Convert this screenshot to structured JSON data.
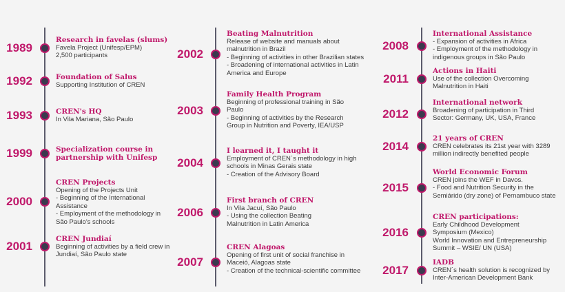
{
  "columns": [
    {
      "entries": [
        {
          "year": "1989",
          "title": [
            "Research in favelas (slums)"
          ],
          "lines": [
            "Favela Project (Unifesp/EPM)",
            "2,500 participants"
          ]
        },
        {
          "year": "1992",
          "title": [
            "Foundation of Salus"
          ],
          "lines": [
            "Supporting Institution of CREN"
          ]
        },
        {
          "year": "1993",
          "title": [
            "CREN's HQ"
          ],
          "lines": [
            "In Vila Mariana, São Paulo"
          ]
        },
        {
          "year": "1999",
          "title": [
            "Specialization course in",
            "partnership with Unifesp"
          ],
          "lines": []
        },
        {
          "year": "2000",
          "title": [
            "CREN Projects"
          ],
          "lines": [
            "Opening of the Projects Unit",
            "- Beginning of the International",
            "Assistance",
            "- Employment of the methodology in",
            "São Paulo's schools"
          ]
        },
        {
          "year": "2001",
          "title": [
            "CREN Jundiaí"
          ],
          "lines": [
            "Beginning of activities by a field crew in",
            "Jundiaí, São Paulo state"
          ]
        }
      ]
    },
    {
      "entries": [
        {
          "year": "2002",
          "title": [
            "Beating Malnutrition"
          ],
          "lines": [
            "Release of website and manuals about",
            "malnutrition in Brazil",
            "- Beginning of activities in other Brazilian states",
            "- Broadening of international activities in Latin",
            "America and Europe"
          ]
        },
        {
          "year": "2003",
          "title": [
            "Family Health Program"
          ],
          "lines": [
            "Beginning of professional training in São",
            "Paulo",
            "- Beginning of activities by the Research",
            "Group in Nutrition and Poverty, IEA/USP"
          ]
        },
        {
          "year": "2004",
          "title": [
            "I learned it, I taught it"
          ],
          "lines": [
            "Employment of CREN´s methodology in high",
            "schools in Minas Gerais state",
            "- Creation of the Advisory Board"
          ]
        },
        {
          "year": "2006",
          "title": [
            "First branch of CREN"
          ],
          "lines": [
            "In Vila Jacuí, São Paulo",
            "- Using the collection Beating",
            "Malnutrition in Latin America"
          ]
        },
        {
          "year": "2007",
          "title": [
            "CREN Alagoas"
          ],
          "lines": [
            "Opening of first unit of social franchise in",
            "Maceió, Alagoas state",
            "- Creation of the technical-scientific committee"
          ]
        }
      ]
    },
    {
      "entries": [
        {
          "year": "2008",
          "title": [
            "International Assistance"
          ],
          "lines": [
            "- Expansion of activities in Africa",
            "- Employment of the methodology in",
            "indigenous groups in São Paulo"
          ]
        },
        {
          "year": "2011",
          "title": [
            "Actions in Haiti"
          ],
          "lines": [
            "Use of the collection Overcoming",
            "Malnutrition in Haiti"
          ]
        },
        {
          "year": "2012",
          "title": [
            "International network"
          ],
          "lines": [
            "Broadening of participation in Third",
            "Sector: Germany, UK, USA, France"
          ]
        },
        {
          "year": "2014",
          "title": [
            "21 years of CREN"
          ],
          "lines": [
            "CREN celebrates its 21st year with 3289",
            "million indirectly benefited people"
          ]
        },
        {
          "year": "2015",
          "title": [
            "World Economic Forum"
          ],
          "lines": [
            "CREN joins the WEF in Davos.",
            "- Food and Nutrition Security in the",
            "Semiárido (dry zone) of Pernambuco state"
          ]
        },
        {
          "year": "2016",
          "title": [
            "CREN participations:"
          ],
          "lines": [
            "Early Childhood Development",
            "Symposium (Mexico)",
            "World Innovation and Entrepreneurship",
            "Summit – WSIE/ UN (USA)"
          ]
        },
        {
          "year": "2017",
          "title": [
            "IADB"
          ],
          "lines": [
            "CREN´s health solution is recognized by",
            "Inter-American Development Bank"
          ]
        }
      ]
    }
  ],
  "colors": {
    "accent": "#c0196b",
    "line": "#5b5b6b",
    "dot": "#3a3a4e",
    "text": "#3a3a3a",
    "background": "#f4f4f4"
  }
}
